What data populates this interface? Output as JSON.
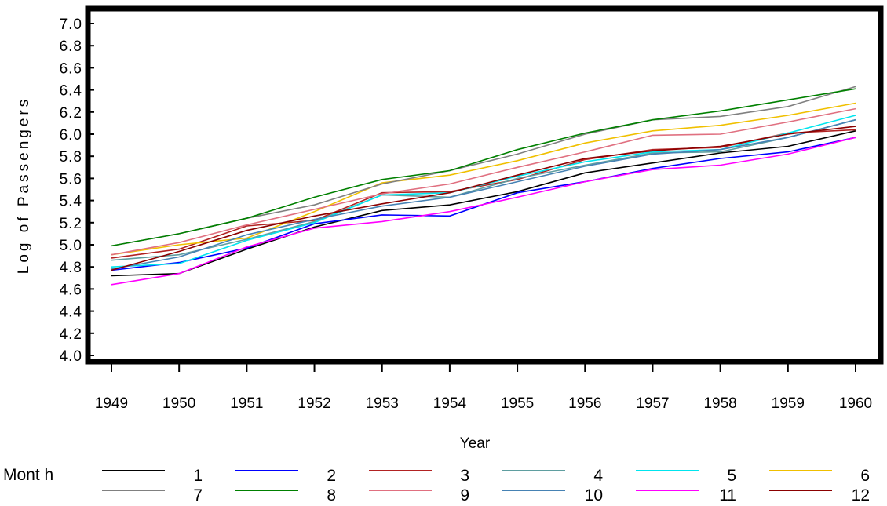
{
  "chart_data": {
    "type": "line",
    "xlabel": "Year",
    "ylabel": "Log of Passengers",
    "xlim": [
      1949,
      1960
    ],
    "ylim": [
      4.0,
      7.0
    ],
    "x_ticks": [
      "1949",
      "1950",
      "1951",
      "1952",
      "1953",
      "1954",
      "1955",
      "1956",
      "1957",
      "1958",
      "1959",
      "1960"
    ],
    "y_ticks": [
      "4.0",
      "4.2",
      "4.4",
      "4.6",
      "4.8",
      "5.0",
      "5.2",
      "5.4",
      "5.6",
      "5.8",
      "6.0",
      "6.2",
      "6.4",
      "6.6",
      "6.8",
      "7.0"
    ],
    "legend_title": "Month",
    "legend_position": "bottom",
    "grid": false,
    "series": [
      {
        "name": "1",
        "color": "#000000",
        "x": [
          1949,
          1950,
          1951,
          1952,
          1953,
          1954,
          1955,
          1956,
          1957,
          1958,
          1959,
          1960
        ],
        "y": [
          4.72,
          4.74,
          4.96,
          5.16,
          5.31,
          5.36,
          5.48,
          5.65,
          5.74,
          5.83,
          5.89,
          6.03
        ]
      },
      {
        "name": "2",
        "color": "#0000FF",
        "x": [
          1949,
          1950,
          1951,
          1952,
          1953,
          1954,
          1955,
          1956,
          1957,
          1958,
          1959,
          1960
        ],
        "y": [
          4.77,
          4.84,
          4.97,
          5.19,
          5.27,
          5.26,
          5.47,
          5.57,
          5.69,
          5.78,
          5.84,
          5.97
        ]
      },
      {
        "name": "3",
        "color": "#B22222",
        "x": [
          1949,
          1950,
          1951,
          1952,
          1953,
          1954,
          1955,
          1956,
          1957,
          1958,
          1959,
          1960
        ],
        "y": [
          4.88,
          4.96,
          5.17,
          5.22,
          5.47,
          5.48,
          5.59,
          5.77,
          5.86,
          5.88,
          6.01,
          6.04
        ]
      },
      {
        "name": "4",
        "color": "#5F9EA0",
        "x": [
          1949,
          1950,
          1951,
          1952,
          1953,
          1954,
          1955,
          1956,
          1957,
          1958,
          1959,
          1960
        ],
        "y": [
          4.86,
          4.91,
          5.05,
          5.21,
          5.45,
          5.43,
          5.6,
          5.72,
          5.83,
          5.84,
          5.97,
          6.13
        ]
      },
      {
        "name": "5",
        "color": "#00E5EE",
        "x": [
          1949,
          1950,
          1951,
          1952,
          1953,
          1954,
          1955,
          1956,
          1957,
          1958,
          1959,
          1960
        ],
        "y": [
          4.8,
          4.83,
          5.04,
          5.2,
          5.45,
          5.47,
          5.62,
          5.75,
          5.84,
          5.86,
          6.01,
          6.17
        ]
      },
      {
        "name": "6",
        "color": "#F0C000",
        "x": [
          1949,
          1950,
          1951,
          1952,
          1953,
          1954,
          1955,
          1956,
          1957,
          1958,
          1959,
          1960
        ],
        "y": [
          4.91,
          5.0,
          5.06,
          5.3,
          5.56,
          5.63,
          5.76,
          5.92,
          6.03,
          6.08,
          6.17,
          6.28
        ]
      },
      {
        "name": "7",
        "color": "#808080",
        "x": [
          1949,
          1950,
          1951,
          1952,
          1953,
          1954,
          1955,
          1956,
          1957,
          1958,
          1959,
          1960
        ],
        "y": [
          4.99,
          5.1,
          5.24,
          5.36,
          5.55,
          5.67,
          5.82,
          6.0,
          6.13,
          6.16,
          6.25,
          6.43
        ]
      },
      {
        "name": "8",
        "color": "#008000",
        "x": [
          1949,
          1950,
          1951,
          1952,
          1953,
          1954,
          1955,
          1956,
          1957,
          1958,
          1959,
          1960
        ],
        "y": [
          4.99,
          5.1,
          5.24,
          5.43,
          5.59,
          5.67,
          5.86,
          6.01,
          6.13,
          6.21,
          6.31,
          6.41
        ]
      },
      {
        "name": "9",
        "color": "#E07080",
        "x": [
          1949,
          1950,
          1951,
          1952,
          1953,
          1954,
          1955,
          1956,
          1957,
          1958,
          1959,
          1960
        ],
        "y": [
          4.91,
          5.02,
          5.18,
          5.32,
          5.46,
          5.55,
          5.7,
          5.84,
          5.99,
          6.0,
          6.11,
          6.23
        ]
      },
      {
        "name": "10",
        "color": "#4682B4",
        "x": [
          1949,
          1950,
          1951,
          1952,
          1953,
          1954,
          1955,
          1956,
          1957,
          1958,
          1959,
          1960
        ],
        "y": [
          4.78,
          4.89,
          5.09,
          5.23,
          5.35,
          5.43,
          5.57,
          5.71,
          5.82,
          5.86,
          5.97,
          6.13
        ]
      },
      {
        "name": "11",
        "color": "#FF00FF",
        "x": [
          1949,
          1950,
          1951,
          1952,
          1953,
          1954,
          1955,
          1956,
          1957,
          1958,
          1959,
          1960
        ],
        "y": [
          4.64,
          4.74,
          4.98,
          5.15,
          5.21,
          5.3,
          5.43,
          5.57,
          5.68,
          5.72,
          5.82,
          5.97
        ]
      },
      {
        "name": "12",
        "color": "#8B0000",
        "x": [
          1949,
          1950,
          1951,
          1952,
          1953,
          1954,
          1955,
          1956,
          1957,
          1958,
          1959,
          1960
        ],
        "y": [
          4.77,
          4.94,
          5.13,
          5.26,
          5.37,
          5.47,
          5.63,
          5.78,
          5.85,
          5.89,
          6.0,
          6.07
        ]
      }
    ],
    "labels": {
      "month_prefix": "Mont h"
    }
  }
}
